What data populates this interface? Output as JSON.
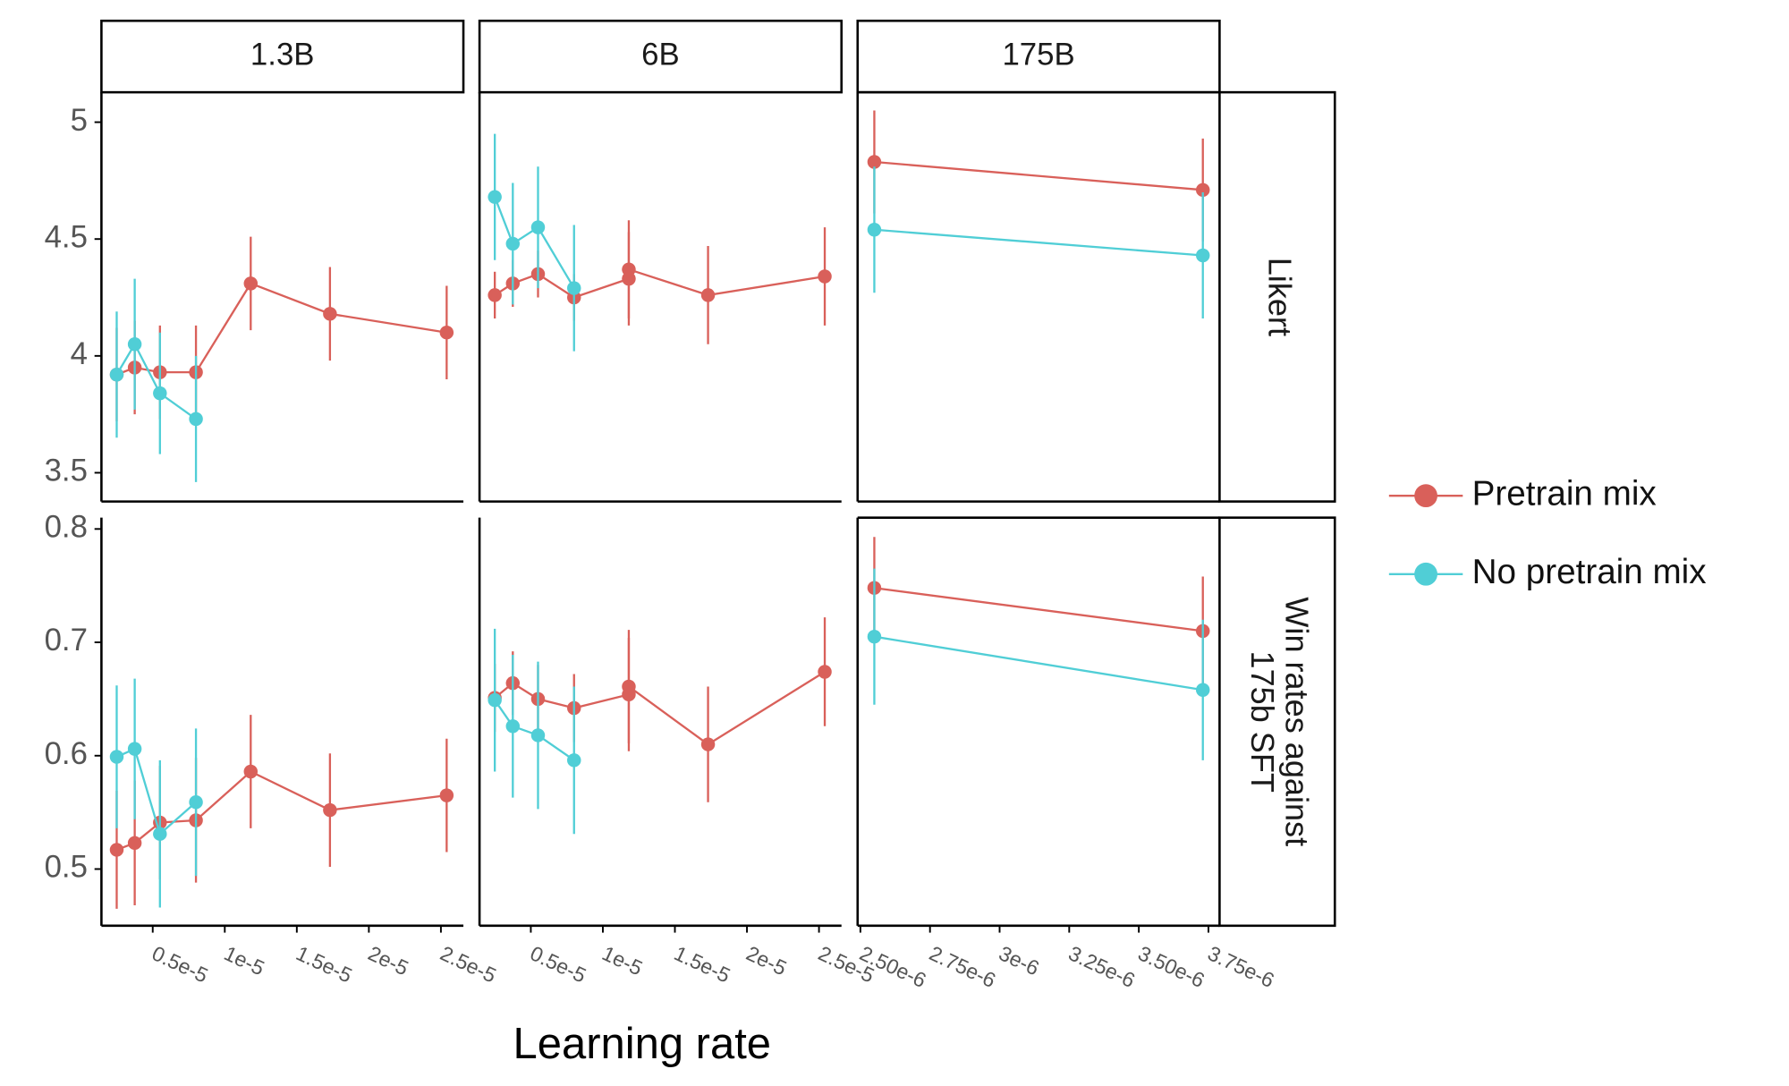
{
  "chart_data": {
    "type": "line",
    "x_label": "Learning rate",
    "legend": "right",
    "series": [
      {
        "name": "Pretrain mix",
        "color": "#d9605a"
      },
      {
        "name": "No pretrain mix",
        "color": "#50ced6"
      }
    ],
    "columns": [
      {
        "title": "1.3B",
        "xlim": [
          1.44e-06,
          2.656e-05
        ],
        "xticks": [
          {
            "value": 5e-06,
            "label": "0.5e-5"
          },
          {
            "value": 1e-05,
            "label": "1e-5"
          },
          {
            "value": 1.5e-05,
            "label": "1.5e-5"
          },
          {
            "value": 2e-05,
            "label": "2e-5"
          },
          {
            "value": 2.5e-05,
            "label": "2.5e-5"
          }
        ]
      },
      {
        "title": "6B",
        "xlim": [
          1.44e-06,
          2.656e-05
        ],
        "xticks": [
          {
            "value": 5e-06,
            "label": "0.5e-5"
          },
          {
            "value": 1e-05,
            "label": "1e-5"
          },
          {
            "value": 1.5e-05,
            "label": "1.5e-5"
          },
          {
            "value": 2e-05,
            "label": "2e-5"
          },
          {
            "value": 2.5e-05,
            "label": "2.5e-5"
          }
        ]
      },
      {
        "title": "175B",
        "xlim": [
          2.49e-06,
          3.79e-06
        ],
        "xticks": [
          {
            "value": 2.5e-06,
            "label": "2.50e-6"
          },
          {
            "value": 2.75e-06,
            "label": "2.75e-6"
          },
          {
            "value": 3e-06,
            "label": "3e-6"
          },
          {
            "value": 3.25e-06,
            "label": "3.25e-6"
          },
          {
            "value": 3.5e-06,
            "label": "3.50e-6"
          },
          {
            "value": 3.75e-06,
            "label": "3.75e-6"
          }
        ]
      }
    ],
    "rows": [
      {
        "title": [
          "Likert"
        ],
        "ylim": [
          3.377,
          5.128
        ],
        "yticks": [
          3.5,
          4,
          4.5,
          5
        ],
        "panels": [
          {
            "series": [
              {
                "x": [
                  2.5e-06,
                  3.75e-06,
                  5.5e-06,
                  8e-06,
                  1.18e-05,
                  1.73e-05,
                  2.54e-05
                ],
                "values": [
                  3.92,
                  3.95,
                  3.93,
                  3.93,
                  4.31,
                  4.18,
                  4.1
                ],
                "errors": [
                  0.2,
                  0.2,
                  0.2,
                  0.2,
                  0.2,
                  0.2,
                  0.2
                ]
              },
              {
                "x": [
                  2.5e-06,
                  3.75e-06,
                  5.5e-06,
                  8e-06
                ],
                "values": [
                  3.92,
                  4.05,
                  3.84,
                  3.73
                ],
                "errors": [
                  0.27,
                  0.28,
                  0.26,
                  0.27
                ]
              }
            ]
          },
          {
            "series": [
              {
                "x": [
                  2.5e-06,
                  3.75e-06,
                  5.5e-06,
                  8e-06,
                  1.18e-05,
                  1.18e-05,
                  1.73e-05,
                  2.54e-05
                ],
                "values": [
                  4.26,
                  4.31,
                  4.35,
                  4.25,
                  4.33,
                  4.37,
                  4.26,
                  4.34
                ],
                "errors": [
                  0.1,
                  0.1,
                  0.1,
                  0.1,
                  0.2,
                  0.21,
                  0.21,
                  0.21
                ]
              },
              {
                "x": [
                  2.5e-06,
                  3.75e-06,
                  5.5e-06,
                  8e-06
                ],
                "values": [
                  4.68,
                  4.48,
                  4.55,
                  4.29
                ],
                "errors": [
                  0.27,
                  0.26,
                  0.26,
                  0.27
                ]
              }
            ]
          },
          {
            "series": [
              {
                "x": [
                  2.55e-06,
                  3.73e-06
                ],
                "values": [
                  4.83,
                  4.71
                ],
                "errors": [
                  0.22,
                  0.22
                ]
              },
              {
                "x": [
                  2.55e-06,
                  3.73e-06
                ],
                "values": [
                  4.54,
                  4.43
                ],
                "errors": [
                  0.27,
                  0.27
                ]
              }
            ]
          }
        ]
      },
      {
        "title": [
          "Win rates against",
          "175b SFT"
        ],
        "ylim": [
          0.45,
          0.81
        ],
        "yticks": [
          0.5,
          0.6,
          0.7,
          0.8
        ],
        "panels": [
          {
            "series": [
              {
                "x": [
                  2.5e-06,
                  3.75e-06,
                  5.5e-06,
                  8e-06,
                  1.18e-05,
                  1.73e-05,
                  2.54e-05
                ],
                "values": [
                  0.517,
                  0.523,
                  0.541,
                  0.543,
                  0.586,
                  0.552,
                  0.565
                ],
                "errors": [
                  0.052,
                  0.055,
                  0.05,
                  0.055,
                  0.05,
                  0.05,
                  0.05
                ]
              },
              {
                "x": [
                  2.5e-06,
                  3.75e-06,
                  5.5e-06,
                  8e-06
                ],
                "values": [
                  0.599,
                  0.606,
                  0.531,
                  0.559
                ],
                "errors": [
                  0.063,
                  0.062,
                  0.065,
                  0.065
                ]
              }
            ]
          },
          {
            "series": [
              {
                "x": [
                  2.5e-06,
                  3.75e-06,
                  5.5e-06,
                  8e-06,
                  1.18e-05,
                  1.18e-05,
                  1.73e-05,
                  2.54e-05
                ],
                "values": [
                  0.651,
                  0.664,
                  0.65,
                  0.642,
                  0.654,
                  0.661,
                  0.61,
                  0.674
                ],
                "errors": [
                  0.03,
                  0.028,
                  0.03,
                  0.03,
                  0.05,
                  0.05,
                  0.051,
                  0.048
                ]
              },
              {
                "x": [
                  2.5e-06,
                  3.75e-06,
                  5.5e-06,
                  8e-06
                ],
                "values": [
                  0.649,
                  0.626,
                  0.618,
                  0.596
                ],
                "errors": [
                  0.063,
                  0.063,
                  0.065,
                  0.065
                ]
              }
            ]
          },
          {
            "series": [
              {
                "x": [
                  2.55e-06,
                  3.73e-06
                ],
                "values": [
                  0.748,
                  0.71
                ],
                "errors": [
                  0.045,
                  0.048
                ]
              },
              {
                "x": [
                  2.55e-06,
                  3.73e-06
                ],
                "values": [
                  0.705,
                  0.658
                ],
                "errors": [
                  0.06,
                  0.062
                ]
              }
            ]
          }
        ]
      }
    ]
  }
}
